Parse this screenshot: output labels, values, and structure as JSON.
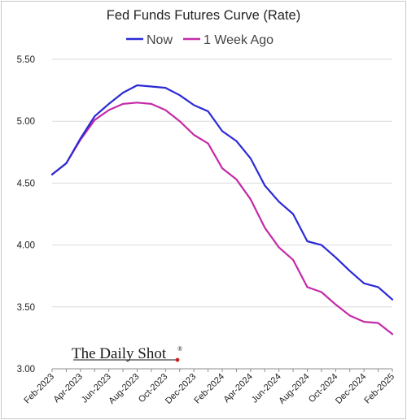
{
  "chart_data": {
    "type": "line",
    "title": "Fed Funds Futures Curve (Rate)",
    "xlabel": "",
    "ylabel": "",
    "ylim": [
      3.0,
      5.5
    ],
    "yticks": [
      "5.50",
      "5.00",
      "4.50",
      "4.00",
      "3.50",
      "3.00"
    ],
    "ytick_values": [
      5.5,
      5.0,
      4.5,
      4.0,
      3.5,
      3.0
    ],
    "x": [
      "Feb-2023",
      "Mar-2023",
      "Apr-2023",
      "May-2023",
      "Jun-2023",
      "Jul-2023",
      "Aug-2023",
      "Sep-2023",
      "Oct-2023",
      "Nov-2023",
      "Dec-2023",
      "Jan-2024",
      "Feb-2024",
      "Mar-2024",
      "Apr-2024",
      "May-2024",
      "Jun-2024",
      "Jul-2024",
      "Aug-2024",
      "Sep-2024",
      "Oct-2024",
      "Nov-2024",
      "Dec-2024",
      "Jan-2025",
      "Feb-2025"
    ],
    "xticks": [
      "Feb-2023",
      "Apr-2023",
      "Jun-2023",
      "Aug-2023",
      "Oct-2023",
      "Dec-2023",
      "Feb-2024",
      "Apr-2024",
      "Jun-2024",
      "Aug-2024",
      "Oct-2024",
      "Dec-2024",
      "Feb-2025"
    ],
    "series": [
      {
        "name": "Now",
        "color": "#2a2ad6",
        "values": [
          4.57,
          4.66,
          4.86,
          5.04,
          5.14,
          5.23,
          5.29,
          5.28,
          5.27,
          5.21,
          5.13,
          5.08,
          4.92,
          4.84,
          4.7,
          4.48,
          4.35,
          4.25,
          4.03,
          4.0,
          3.9,
          3.79,
          3.69,
          3.66,
          3.56
        ]
      },
      {
        "name": "1 Week Ago",
        "color": "#c42aa8",
        "values": [
          4.57,
          4.66,
          4.85,
          5.01,
          5.09,
          5.14,
          5.15,
          5.14,
          5.09,
          5.0,
          4.89,
          4.82,
          4.62,
          4.53,
          4.37,
          4.14,
          3.98,
          3.88,
          3.66,
          3.62,
          3.52,
          3.43,
          3.38,
          3.37,
          3.28
        ]
      }
    ],
    "grid": true,
    "legend": "top-center"
  },
  "watermark": {
    "text": "The Daily Shot",
    "reg": "®",
    "dot_color": "#cc1f1f"
  }
}
